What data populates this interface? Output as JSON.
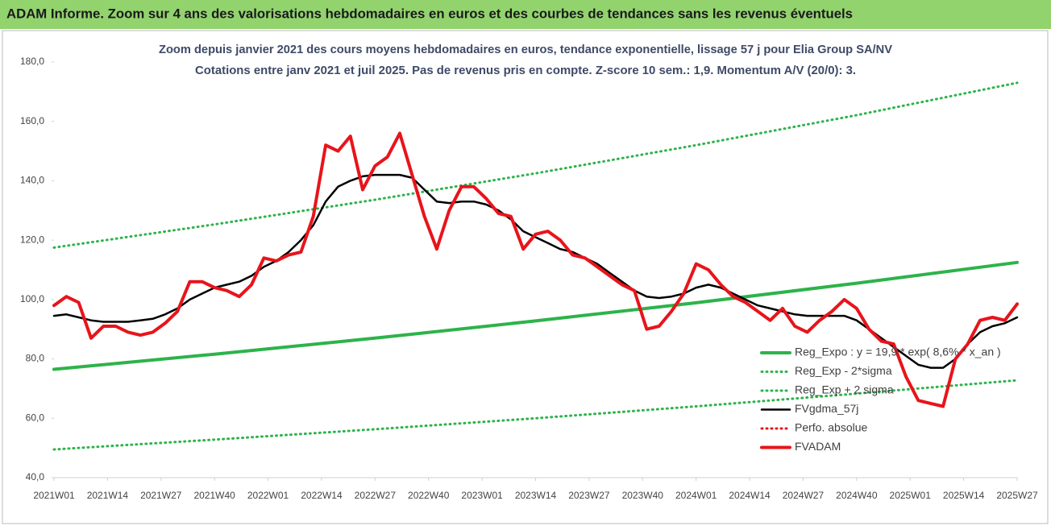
{
  "chart_data": {
    "type": "line",
    "title": "ADAM Informe. Zoom sur 4 ans des valorisations hebdomadaires en euros et des courbes de tendances sans les revenus éventuels",
    "subtitle": [
      "Zoom depuis janvier 2021 des cours moyens hebdomadaires en euros, tendance exponentielle, lissage 57 j pour Elia Group SA/NV",
      "Cotations entre janv 2021 et juil 2025. Pas de revenus pris en compte. Z-score 10 sem.: 1,9. Momentum A/V (20/0): 3."
    ],
    "xlim": [
      0,
      234
    ],
    "xticks": [
      {
        "value": 0,
        "label": "2021W01"
      },
      {
        "value": 13,
        "label": "2021W14"
      },
      {
        "value": 26,
        "label": "2021W27"
      },
      {
        "value": 39,
        "label": "2021W40"
      },
      {
        "value": 52,
        "label": "2022W01"
      },
      {
        "value": 65,
        "label": "2022W14"
      },
      {
        "value": 78,
        "label": "2022W27"
      },
      {
        "value": 91,
        "label": "2022W40"
      },
      {
        "value": 104,
        "label": "2023W01"
      },
      {
        "value": 117,
        "label": "2023W14"
      },
      {
        "value": 130,
        "label": "2023W27"
      },
      {
        "value": 143,
        "label": "2023W40"
      },
      {
        "value": 156,
        "label": "2024W01"
      },
      {
        "value": 169,
        "label": "2024W14"
      },
      {
        "value": 182,
        "label": "2024W27"
      },
      {
        "value": 195,
        "label": "2024W40"
      },
      {
        "value": 208,
        "label": "2025W01"
      },
      {
        "value": 221,
        "label": "2025W14"
      },
      {
        "value": 234,
        "label": "2025W27"
      }
    ],
    "ylim": [
      40,
      180
    ],
    "yticks": [
      {
        "value": 40,
        "label": "40,0"
      },
      {
        "value": 60,
        "label": "60,0"
      },
      {
        "value": 80,
        "label": "80,0"
      },
      {
        "value": 100,
        "label": "100,0"
      },
      {
        "value": 120,
        "label": "120,0"
      },
      {
        "value": 140,
        "label": "140,0"
      },
      {
        "value": 160,
        "label": "160,0"
      },
      {
        "value": 180,
        "label": "180,0"
      }
    ],
    "grid": false,
    "series": [
      {
        "name": "Reg_Expo : y = 19,9 * exp( 8,6% * x_an )",
        "color": "#2db34a",
        "style": "solid",
        "x": [
          0,
          39,
          78,
          117,
          156,
          195,
          234
        ],
        "values": [
          76.5,
          81.6,
          87.0,
          92.8,
          98.9,
          105.5,
          112.5
        ]
      },
      {
        "name": "Reg_Exp - 2*sigma",
        "color": "#2db34a",
        "style": "dotted",
        "x": [
          0,
          39,
          78,
          117,
          156,
          195,
          234
        ],
        "values": [
          49.5,
          52.8,
          56.3,
          60.0,
          64.0,
          68.3,
          72.8
        ]
      },
      {
        "name": "Reg_Exp + 2 sigma",
        "color": "#2db34a",
        "style": "dotted",
        "x": [
          0,
          39,
          78,
          117,
          156,
          195,
          234
        ],
        "values": [
          117.5,
          125.3,
          133.6,
          142.5,
          152.0,
          162.1,
          173.0
        ]
      },
      {
        "name": "FVgdma_57j",
        "color": "#000000",
        "style": "solid",
        "x": [
          0,
          3,
          6,
          9,
          12,
          15,
          18,
          21,
          24,
          27,
          30,
          33,
          36,
          39,
          42,
          45,
          48,
          51,
          54,
          57,
          60,
          63,
          66,
          69,
          72,
          75,
          78,
          81,
          84,
          87,
          90,
          93,
          96,
          99,
          102,
          105,
          108,
          111,
          114,
          117,
          120,
          123,
          126,
          129,
          132,
          135,
          138,
          141,
          144,
          147,
          150,
          153,
          156,
          159,
          162,
          165,
          168,
          171,
          174,
          177,
          180,
          183,
          186,
          189,
          192,
          195,
          198,
          201,
          204,
          207,
          210,
          213,
          216,
          219,
          222,
          225,
          228,
          231,
          234
        ],
        "values": [
          94.5,
          95,
          94,
          93,
          92.5,
          92.5,
          92.5,
          93,
          93.5,
          95,
          97,
          100,
          102,
          104,
          105,
          106,
          108,
          111,
          113,
          116,
          120,
          125,
          133,
          138,
          140,
          141.5,
          142,
          142,
          142,
          141,
          137,
          133,
          132.5,
          133,
          133,
          132,
          130,
          127,
          123,
          121,
          119,
          117,
          116,
          114,
          112,
          109,
          106,
          103,
          101,
          100.5,
          101,
          102,
          104,
          105,
          104,
          102,
          100,
          98,
          97,
          96,
          95,
          94.5,
          94.5,
          94.5,
          94.5,
          93,
          90,
          87,
          84,
          81,
          78,
          77,
          77,
          80,
          85,
          89,
          91,
          92,
          94
        ]
      },
      {
        "name": "Perfo. absolue",
        "color": "#e8141b",
        "style": "dotted",
        "x": [],
        "values": []
      },
      {
        "name": "FVADAM",
        "color": "#e8141b",
        "style": "thick",
        "x": [
          0,
          3,
          6,
          9,
          12,
          15,
          18,
          21,
          24,
          27,
          30,
          33,
          36,
          39,
          42,
          45,
          48,
          51,
          54,
          57,
          60,
          63,
          66,
          69,
          72,
          75,
          78,
          81,
          84,
          87,
          90,
          93,
          96,
          99,
          102,
          105,
          108,
          111,
          114,
          117,
          120,
          123,
          126,
          129,
          132,
          135,
          138,
          141,
          144,
          147,
          150,
          153,
          156,
          159,
          162,
          165,
          168,
          171,
          174,
          177,
          180,
          183,
          186,
          189,
          192,
          195,
          198,
          201,
          204,
          207,
          210,
          213,
          216,
          219,
          222,
          225,
          228,
          231,
          234
        ],
        "values": [
          98,
          101,
          99,
          87,
          91,
          91,
          89,
          88,
          89,
          92,
          96,
          106,
          106,
          104,
          103,
          101,
          105,
          114,
          113,
          115,
          116,
          128,
          152,
          150,
          155,
          137,
          145,
          148,
          156,
          142,
          128,
          117,
          130,
          138,
          138,
          134,
          129,
          128,
          117,
          122,
          123,
          120,
          115,
          114,
          111,
          108,
          105,
          103,
          90,
          91,
          96,
          102,
          112,
          110,
          105,
          101,
          99,
          96,
          93,
          97,
          91,
          89,
          93,
          96,
          100,
          97,
          90,
          86,
          85,
          74,
          66,
          65,
          64,
          80,
          85,
          93,
          94,
          93,
          98.5
        ]
      }
    ]
  }
}
